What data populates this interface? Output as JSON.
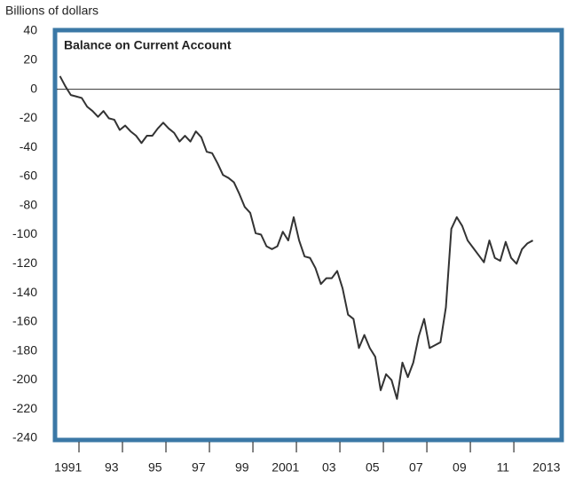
{
  "chart_data": {
    "type": "line",
    "title": "Balance on Current Account",
    "y_label": "Billions of dollars",
    "x": [
      1991.125,
      1991.375,
      1991.625,
      1991.875,
      1992.125,
      1992.375,
      1992.625,
      1992.875,
      1993.125,
      1993.375,
      1993.625,
      1993.875,
      1994.125,
      1994.375,
      1994.625,
      1994.875,
      1995.125,
      1995.375,
      1995.625,
      1995.875,
      1996.125,
      1996.375,
      1996.625,
      1996.875,
      1997.125,
      1997.375,
      1997.625,
      1997.875,
      1998.125,
      1998.375,
      1998.625,
      1998.875,
      1999.125,
      1999.375,
      1999.625,
      1999.875,
      2000.125,
      2000.375,
      2000.625,
      2000.875,
      2001.125,
      2001.375,
      2001.625,
      2001.875,
      2002.125,
      2002.375,
      2002.625,
      2002.875,
      2003.125,
      2003.375,
      2003.625,
      2003.875,
      2004.125,
      2004.375,
      2004.625,
      2004.875,
      2005.125,
      2005.375,
      2005.625,
      2005.875,
      2006.125,
      2006.375,
      2006.625,
      2006.875,
      2007.125,
      2007.375,
      2007.625,
      2007.875,
      2008.125,
      2008.375,
      2008.625,
      2008.875,
      2009.125,
      2009.375,
      2009.625,
      2009.875,
      2010.125,
      2010.375,
      2010.625,
      2010.875,
      2011.125,
      2011.375,
      2011.625,
      2011.875,
      2012.125,
      2012.375,
      2012.625,
      2012.875
    ],
    "series": [
      {
        "color": "#333333",
        "values": [
          9,
          2,
          -4,
          -5,
          -6,
          -12,
          -15,
          -19,
          -15,
          -20,
          -21,
          -28,
          -25,
          -29,
          -32,
          -37,
          -32,
          -32,
          -27,
          -23,
          -27,
          -30,
          -36,
          -32,
          -36,
          -29,
          -33,
          -43,
          -44,
          -51,
          -59,
          -61,
          -64,
          -72,
          -81,
          -85,
          -99,
          -100,
          -108,
          -110,
          -108,
          -98,
          -104,
          -88,
          -104,
          -115,
          -116,
          -123,
          -134,
          -130,
          -130,
          -125,
          -137,
          -155,
          -158,
          -178,
          -169,
          -178,
          -184,
          -207,
          -196,
          -200,
          -213,
          -188,
          -198,
          -188,
          -170,
          -158,
          -178,
          -176,
          -174,
          -150,
          -96,
          -88,
          -94,
          -104,
          -109,
          -114,
          -119,
          -104,
          -116,
          -118,
          -105,
          -116,
          -120,
          -110,
          -106,
          -104
        ]
      }
    ],
    "xlim": [
      1991,
      2014.2
    ],
    "xticks": [
      {
        "value": 1991.5,
        "label": "1991"
      },
      {
        "value": 1993.5,
        "label": "93"
      },
      {
        "value": 1995.5,
        "label": "95"
      },
      {
        "value": 1997.5,
        "label": "97"
      },
      {
        "value": 1999.5,
        "label": "99"
      },
      {
        "value": 2001.5,
        "label": "2001"
      },
      {
        "value": 2003.5,
        "label": "03"
      },
      {
        "value": 2005.5,
        "label": "05"
      },
      {
        "value": 2007.5,
        "label": "07"
      },
      {
        "value": 2009.5,
        "label": "09"
      },
      {
        "value": 2011.5,
        "label": "11"
      },
      {
        "value": 2013.5,
        "label": "2013"
      }
    ],
    "xminor_ticks": [
      1992,
      1994,
      1996,
      1998,
      2000,
      2002,
      2004,
      2006,
      2008,
      2010,
      2012
    ],
    "ylim": [
      -240,
      40
    ],
    "yticks": [
      40,
      20,
      0,
      -20,
      -40,
      -60,
      -80,
      -100,
      -120,
      -140,
      -160,
      -180,
      -200,
      -220,
      -240
    ],
    "frame_color": "#3b78a6"
  }
}
